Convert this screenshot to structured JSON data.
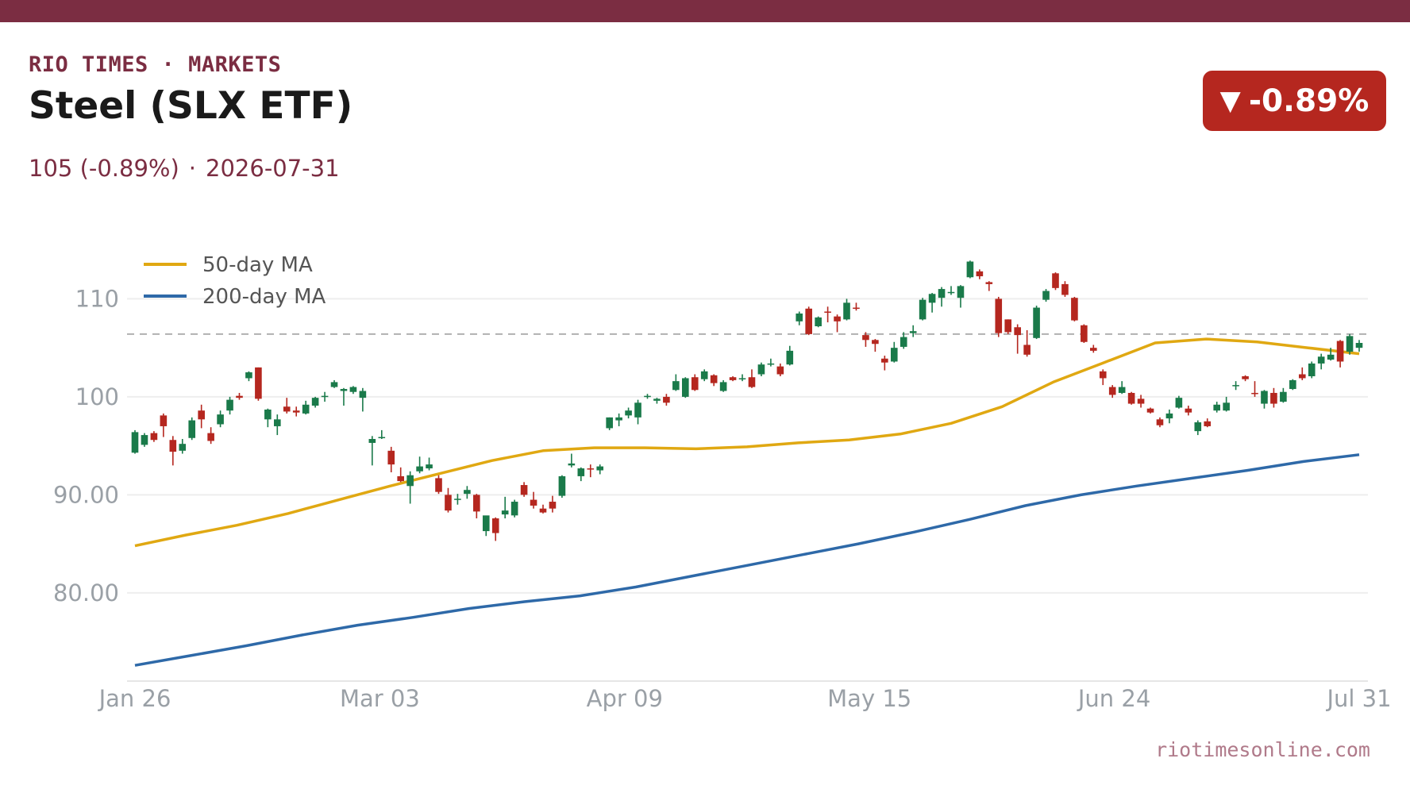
{
  "header": {
    "kicker": "RIO TIMES · MARKETS",
    "title": "Steel (SLX ETF)",
    "price": "105 (-0.89%)",
    "separator": "·",
    "date": "2026-07-31",
    "badge_arrow": "▼",
    "badge_change": "-0.89%"
  },
  "footer": {
    "source": "riotimesonline.com"
  },
  "colors": {
    "brand": "#7b2d42",
    "up": "#1a7a4a",
    "down": "#b5271f",
    "ma50": "#e0a812",
    "ma200": "#2e69a8",
    "reference": "#b0b0b0",
    "grid": "#eeeeee"
  },
  "chart_data": {
    "type": "candlestick",
    "title": "Steel (SLX ETF)",
    "y_ticks": [
      {
        "value": 80,
        "label": "80.00"
      },
      {
        "value": 90,
        "label": "90.00"
      },
      {
        "value": 100,
        "label": "100"
      },
      {
        "value": 110,
        "label": "110"
      }
    ],
    "x_ticks": [
      "Jan 26",
      "Mar 03",
      "Apr 09",
      "May 15",
      "Jun 24",
      "Jul 31"
    ],
    "ylim": [
      71,
      117
    ],
    "reference_value": 106.4,
    "grid": true,
    "legend_position": "top-left",
    "series": [
      {
        "name": "50-day MA",
        "values": [
          84.8,
          85.9,
          86.9,
          88.1,
          89.5,
          90.9,
          92.2,
          93.5,
          94.5,
          94.8,
          94.8,
          94.7,
          94.9,
          95.3,
          95.6,
          96.2,
          97.3,
          99.0,
          101.5,
          103.5,
          105.5,
          105.9,
          105.6,
          105.0,
          104.4
        ]
      },
      {
        "name": "200-day MA",
        "values": [
          72.6,
          73.6,
          74.6,
          75.7,
          76.7,
          77.5,
          78.4,
          79.1,
          79.7,
          80.6,
          81.7,
          82.8,
          83.9,
          85.0,
          86.2,
          87.5,
          88.9,
          90.0,
          90.9,
          91.7,
          92.5,
          93.4,
          94.1
        ]
      }
    ],
    "candles": [
      {
        "date": "Jan 26",
        "open": 94.3,
        "high": 96.6,
        "low": 94.2,
        "close": 96.4
      },
      {
        "date": "Jan 27",
        "open": 95.1,
        "high": 96.3,
        "low": 94.9,
        "close": 96.1
      },
      {
        "date": "Jan 28",
        "open": 96.3,
        "high": 96.5,
        "low": 95.4,
        "close": 95.6
      },
      {
        "date": "Jan 29",
        "open": 98.1,
        "high": 98.3,
        "low": 95.9,
        "close": 97.0
      },
      {
        "date": "Jan 30",
        "open": 95.6,
        "high": 96.0,
        "low": 93.0,
        "close": 94.4
      },
      {
        "date": "Feb 02",
        "open": 94.5,
        "high": 95.7,
        "low": 94.2,
        "close": 95.2
      },
      {
        "date": "Feb 03",
        "open": 95.8,
        "high": 97.9,
        "low": 95.6,
        "close": 97.6
      },
      {
        "date": "Feb 04",
        "open": 98.6,
        "high": 99.2,
        "low": 96.8,
        "close": 97.7
      },
      {
        "date": "Feb 05",
        "open": 96.3,
        "high": 96.9,
        "low": 95.2,
        "close": 95.5
      },
      {
        "date": "Feb 06",
        "open": 97.2,
        "high": 98.6,
        "low": 96.9,
        "close": 98.2
      },
      {
        "date": "Feb 09",
        "open": 98.6,
        "high": 100.0,
        "low": 98.2,
        "close": 99.7
      },
      {
        "date": "Feb 10",
        "open": 100.1,
        "high": 100.4,
        "low": 99.7,
        "close": 99.9
      },
      {
        "date": "Feb 11",
        "open": 101.9,
        "high": 102.6,
        "low": 101.6,
        "close": 102.5
      },
      {
        "date": "Feb 12",
        "open": 103.0,
        "high": 103.0,
        "low": 99.6,
        "close": 99.8
      },
      {
        "date": "Feb 13",
        "open": 97.7,
        "high": 98.8,
        "low": 96.9,
        "close": 98.7
      },
      {
        "date": "Feb 16",
        "open": 97.0,
        "high": 98.2,
        "low": 96.1,
        "close": 97.7
      },
      {
        "date": "Feb 17",
        "open": 99.0,
        "high": 99.9,
        "low": 98.3,
        "close": 98.5
      },
      {
        "date": "Feb 18",
        "open": 98.6,
        "high": 99.0,
        "low": 98.0,
        "close": 98.4
      },
      {
        "date": "Feb 19",
        "open": 98.3,
        "high": 99.6,
        "low": 98.2,
        "close": 99.2
      },
      {
        "date": "Feb 20",
        "open": 99.1,
        "high": 100.0,
        "low": 98.9,
        "close": 99.9
      },
      {
        "date": "Feb 23",
        "open": 100.0,
        "high": 100.5,
        "low": 99.5,
        "close": 100.1
      },
      {
        "date": "Feb 24",
        "open": 101.0,
        "high": 101.7,
        "low": 100.9,
        "close": 101.5
      },
      {
        "date": "Feb 25",
        "open": 100.6,
        "high": 100.9,
        "low": 99.1,
        "close": 100.8
      },
      {
        "date": "Feb 26",
        "open": 100.5,
        "high": 101.1,
        "low": 100.3,
        "close": 101.0
      },
      {
        "date": "Feb 27",
        "open": 99.9,
        "high": 100.9,
        "low": 98.5,
        "close": 100.6
      },
      {
        "date": "Mar 03",
        "open": 95.3,
        "high": 96.0,
        "low": 93.0,
        "close": 95.7
      },
      {
        "date": "Mar 04",
        "open": 95.8,
        "high": 96.6,
        "low": 95.7,
        "close": 95.9
      },
      {
        "date": "Mar 05",
        "open": 94.5,
        "high": 94.9,
        "low": 92.3,
        "close": 93.1
      },
      {
        "date": "Mar 06",
        "open": 91.9,
        "high": 92.8,
        "low": 91.3,
        "close": 91.4
      },
      {
        "date": "Mar 09",
        "open": 90.9,
        "high": 92.4,
        "low": 89.1,
        "close": 92.0
      },
      {
        "date": "Mar 10",
        "open": 92.4,
        "high": 93.9,
        "low": 92.2,
        "close": 92.9
      },
      {
        "date": "Mar 11",
        "open": 92.7,
        "high": 93.8,
        "low": 92.5,
        "close": 93.1
      },
      {
        "date": "Mar 12",
        "open": 91.7,
        "high": 92.0,
        "low": 90.1,
        "close": 90.3
      },
      {
        "date": "Mar 13",
        "open": 90.0,
        "high": 90.7,
        "low": 88.2,
        "close": 88.4
      },
      {
        "date": "Mar 16",
        "open": 89.5,
        "high": 90.1,
        "low": 89.0,
        "close": 89.6
      },
      {
        "date": "Mar 17",
        "open": 90.1,
        "high": 90.9,
        "low": 89.6,
        "close": 90.5
      },
      {
        "date": "Mar 18",
        "open": 90.0,
        "high": 90.1,
        "low": 87.6,
        "close": 88.3
      },
      {
        "date": "Mar 19",
        "open": 86.3,
        "high": 87.7,
        "low": 85.8,
        "close": 87.9
      },
      {
        "date": "Mar 20",
        "open": 87.6,
        "high": 87.7,
        "low": 85.3,
        "close": 86.1
      },
      {
        "date": "Mar 23",
        "open": 88.0,
        "high": 89.8,
        "low": 87.6,
        "close": 88.4
      },
      {
        "date": "Mar 24",
        "open": 87.9,
        "high": 89.5,
        "low": 87.7,
        "close": 89.3
      },
      {
        "date": "Mar 25",
        "open": 91.0,
        "high": 91.3,
        "low": 89.8,
        "close": 90.0
      },
      {
        "date": "Mar 26",
        "open": 89.5,
        "high": 90.3,
        "low": 88.6,
        "close": 88.9
      },
      {
        "date": "Mar 27",
        "open": 88.6,
        "high": 89.0,
        "low": 88.1,
        "close": 88.2
      },
      {
        "date": "Mar 30",
        "open": 89.3,
        "high": 89.9,
        "low": 88.2,
        "close": 88.6
      },
      {
        "date": "Mar 31",
        "open": 89.9,
        "high": 92.0,
        "low": 89.7,
        "close": 91.9
      },
      {
        "date": "Apr 01",
        "open": 93.0,
        "high": 94.2,
        "low": 92.8,
        "close": 93.2
      },
      {
        "date": "Apr 02",
        "open": 91.9,
        "high": 92.8,
        "low": 91.4,
        "close": 92.7
      },
      {
        "date": "Apr 06",
        "open": 92.7,
        "high": 93.1,
        "low": 91.8,
        "close": 92.6
      },
      {
        "date": "Apr 07",
        "open": 92.5,
        "high": 93.1,
        "low": 92.1,
        "close": 92.9
      },
      {
        "date": "Apr 09",
        "open": 96.8,
        "high": 97.9,
        "low": 96.6,
        "close": 97.9
      },
      {
        "date": "Apr 10",
        "open": 97.6,
        "high": 98.3,
        "low": 97.0,
        "close": 97.9
      },
      {
        "date": "Apr 13",
        "open": 98.1,
        "high": 98.9,
        "low": 97.8,
        "close": 98.6
      },
      {
        "date": "Apr 14",
        "open": 97.9,
        "high": 99.7,
        "low": 97.2,
        "close": 99.4
      },
      {
        "date": "Apr 15",
        "open": 100.0,
        "high": 100.3,
        "low": 99.8,
        "close": 100.1
      },
      {
        "date": "Apr 16",
        "open": 99.6,
        "high": 99.9,
        "low": 99.3,
        "close": 99.8
      },
      {
        "date": "Apr 17",
        "open": 100.0,
        "high": 100.3,
        "low": 99.1,
        "close": 99.4
      },
      {
        "date": "Apr 20",
        "open": 100.7,
        "high": 102.3,
        "low": 100.6,
        "close": 101.6
      },
      {
        "date": "Apr 21",
        "open": 100.0,
        "high": 102.0,
        "low": 99.9,
        "close": 101.9
      },
      {
        "date": "Apr 22",
        "open": 102.0,
        "high": 102.3,
        "low": 100.6,
        "close": 100.7
      },
      {
        "date": "Apr 23",
        "open": 101.8,
        "high": 102.8,
        "low": 101.6,
        "close": 102.6
      },
      {
        "date": "Apr 24",
        "open": 102.2,
        "high": 102.3,
        "low": 101.1,
        "close": 101.4
      },
      {
        "date": "Apr 27",
        "open": 100.6,
        "high": 101.7,
        "low": 100.5,
        "close": 101.5
      },
      {
        "date": "Apr 28",
        "open": 102.0,
        "high": 102.1,
        "low": 101.6,
        "close": 101.7
      },
      {
        "date": "Apr 29",
        "open": 101.8,
        "high": 102.3,
        "low": 101.6,
        "close": 101.9
      },
      {
        "date": "Apr 30",
        "open": 102.0,
        "high": 102.8,
        "low": 100.9,
        "close": 101.0
      },
      {
        "date": "May 01",
        "open": 102.3,
        "high": 103.5,
        "low": 102.1,
        "close": 103.3
      },
      {
        "date": "May 04",
        "open": 103.3,
        "high": 103.9,
        "low": 103.1,
        "close": 103.4
      },
      {
        "date": "May 05",
        "open": 103.1,
        "high": 103.4,
        "low": 102.1,
        "close": 102.3
      },
      {
        "date": "May 06",
        "open": 103.3,
        "high": 105.2,
        "low": 103.2,
        "close": 104.7
      },
      {
        "date": "May 07",
        "open": 107.7,
        "high": 108.7,
        "low": 107.3,
        "close": 108.5
      },
      {
        "date": "May 08",
        "open": 109.0,
        "high": 109.2,
        "low": 106.3,
        "close": 106.4
      },
      {
        "date": "May 11",
        "open": 107.2,
        "high": 108.2,
        "low": 107.1,
        "close": 108.1
      },
      {
        "date": "May 12",
        "open": 108.7,
        "high": 109.2,
        "low": 107.6,
        "close": 108.6
      },
      {
        "date": "May 13",
        "open": 108.2,
        "high": 108.4,
        "low": 106.6,
        "close": 107.7
      },
      {
        "date": "May 14",
        "open": 107.9,
        "high": 110.0,
        "low": 107.8,
        "close": 109.6
      },
      {
        "date": "May 15",
        "open": 109.1,
        "high": 109.6,
        "low": 108.8,
        "close": 109.0
      },
      {
        "date": "May 18",
        "open": 106.3,
        "high": 106.6,
        "low": 105.1,
        "close": 105.8
      },
      {
        "date": "May 19",
        "open": 105.8,
        "high": 105.9,
        "low": 104.6,
        "close": 105.4
      },
      {
        "date": "May 20",
        "open": 103.9,
        "high": 104.2,
        "low": 102.7,
        "close": 103.5
      },
      {
        "date": "May 21",
        "open": 103.6,
        "high": 105.6,
        "low": 103.5,
        "close": 105.0
      },
      {
        "date": "May 22",
        "open": 105.1,
        "high": 106.6,
        "low": 104.9,
        "close": 106.1
      },
      {
        "date": "May 25",
        "open": 106.5,
        "high": 107.3,
        "low": 106.1,
        "close": 106.7
      },
      {
        "date": "May 26",
        "open": 107.9,
        "high": 110.1,
        "low": 107.8,
        "close": 109.9
      },
      {
        "date": "May 27",
        "open": 109.6,
        "high": 110.6,
        "low": 108.6,
        "close": 110.5
      },
      {
        "date": "May 28",
        "open": 110.1,
        "high": 111.2,
        "low": 109.2,
        "close": 111.0
      },
      {
        "date": "May 29",
        "open": 110.6,
        "high": 111.3,
        "low": 110.4,
        "close": 110.7
      },
      {
        "date": "Jun 01",
        "open": 110.1,
        "high": 111.4,
        "low": 109.1,
        "close": 111.3
      },
      {
        "date": "Jun 02",
        "open": 112.2,
        "high": 113.9,
        "low": 112.1,
        "close": 113.8
      },
      {
        "date": "Jun 03",
        "open": 112.8,
        "high": 113.0,
        "low": 112.0,
        "close": 112.3
      },
      {
        "date": "Jun 04",
        "open": 111.7,
        "high": 111.8,
        "low": 110.8,
        "close": 111.5
      },
      {
        "date": "Jun 05",
        "open": 110.0,
        "high": 110.2,
        "low": 106.1,
        "close": 106.5
      },
      {
        "date": "Jun 08",
        "open": 107.9,
        "high": 107.9,
        "low": 106.4,
        "close": 106.6
      },
      {
        "date": "Jun 09",
        "open": 107.1,
        "high": 107.4,
        "low": 104.4,
        "close": 106.3
      },
      {
        "date": "Jun 10",
        "open": 105.3,
        "high": 106.8,
        "low": 104.1,
        "close": 104.3
      },
      {
        "date": "Jun 11",
        "open": 106.0,
        "high": 109.3,
        "low": 105.9,
        "close": 109.1
      },
      {
        "date": "Jun 12",
        "open": 109.9,
        "high": 111.0,
        "low": 109.7,
        "close": 110.8
      },
      {
        "date": "Jun 15",
        "open": 112.6,
        "high": 112.7,
        "low": 110.9,
        "close": 111.1
      },
      {
        "date": "Jun 16",
        "open": 111.5,
        "high": 111.8,
        "low": 110.2,
        "close": 110.4
      },
      {
        "date": "Jun 17",
        "open": 110.1,
        "high": 110.2,
        "low": 107.7,
        "close": 107.8
      },
      {
        "date": "Jun 18",
        "open": 107.3,
        "high": 107.4,
        "low": 105.5,
        "close": 105.6
      },
      {
        "date": "Jun 19",
        "open": 105.0,
        "high": 105.3,
        "low": 104.5,
        "close": 104.7
      },
      {
        "date": "Jun 22",
        "open": 102.6,
        "high": 102.8,
        "low": 101.2,
        "close": 101.9
      },
      {
        "date": "Jun 23",
        "open": 101.0,
        "high": 101.2,
        "low": 99.9,
        "close": 100.2
      },
      {
        "date": "Jun 24",
        "open": 100.4,
        "high": 101.6,
        "low": 100.3,
        "close": 101.0
      },
      {
        "date": "Jun 25",
        "open": 100.4,
        "high": 100.5,
        "low": 99.2,
        "close": 99.3
      },
      {
        "date": "Jun 26",
        "open": 99.8,
        "high": 100.2,
        "low": 98.9,
        "close": 99.3
      },
      {
        "date": "Jun 29",
        "open": 98.8,
        "high": 98.9,
        "low": 98.3,
        "close": 98.4
      },
      {
        "date": "Jun 30",
        "open": 97.7,
        "high": 97.9,
        "low": 96.9,
        "close": 97.1
      },
      {
        "date": "Jul 01",
        "open": 97.8,
        "high": 98.7,
        "low": 97.3,
        "close": 98.3
      },
      {
        "date": "Jul 02",
        "open": 98.9,
        "high": 100.1,
        "low": 98.8,
        "close": 99.9
      },
      {
        "date": "Jul 03",
        "open": 98.8,
        "high": 99.1,
        "low": 98.1,
        "close": 98.4
      },
      {
        "date": "Jul 06",
        "open": 96.5,
        "high": 97.6,
        "low": 96.1,
        "close": 97.4
      },
      {
        "date": "Jul 07",
        "open": 97.5,
        "high": 97.8,
        "low": 96.9,
        "close": 97.0
      },
      {
        "date": "Jul 08",
        "open": 98.6,
        "high": 99.5,
        "low": 98.4,
        "close": 99.2
      },
      {
        "date": "Jul 09",
        "open": 98.6,
        "high": 100.0,
        "low": 98.5,
        "close": 99.4
      },
      {
        "date": "Jul 10",
        "open": 101.1,
        "high": 101.6,
        "low": 100.7,
        "close": 101.2
      },
      {
        "date": "Jul 13",
        "open": 102.1,
        "high": 102.2,
        "low": 101.6,
        "close": 101.8
      },
      {
        "date": "Jul 14",
        "open": 100.4,
        "high": 101.6,
        "low": 100.0,
        "close": 100.3
      },
      {
        "date": "Jul 15",
        "open": 99.3,
        "high": 100.7,
        "low": 98.8,
        "close": 100.6
      },
      {
        "date": "Jul 16",
        "open": 100.4,
        "high": 100.9,
        "low": 98.9,
        "close": 99.3
      },
      {
        "date": "Jul 17",
        "open": 99.5,
        "high": 100.9,
        "low": 99.4,
        "close": 100.5
      },
      {
        "date": "Jul 20",
        "open": 100.8,
        "high": 101.8,
        "low": 100.7,
        "close": 101.7
      },
      {
        "date": "Jul 21",
        "open": 102.3,
        "high": 103.0,
        "low": 101.7,
        "close": 101.9
      },
      {
        "date": "Jul 22",
        "open": 102.1,
        "high": 103.6,
        "low": 101.9,
        "close": 103.4
      },
      {
        "date": "Jul 23",
        "open": 103.4,
        "high": 104.4,
        "low": 102.8,
        "close": 104.1
      },
      {
        "date": "Jul 24",
        "open": 103.8,
        "high": 105.0,
        "low": 103.7,
        "close": 104.3
      },
      {
        "date": "Jul 27",
        "open": 105.7,
        "high": 105.8,
        "low": 103.0,
        "close": 103.6
      },
      {
        "date": "Jul 28",
        "open": 104.6,
        "high": 106.4,
        "low": 104.3,
        "close": 106.2
      },
      {
        "date": "Jul 29",
        "open": 105.0,
        "high": 105.8,
        "low": 104.6,
        "close": 105.5
      }
    ]
  }
}
